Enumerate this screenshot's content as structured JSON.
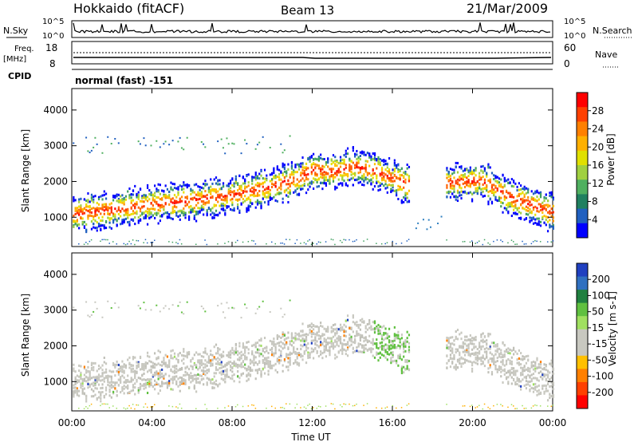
{
  "header": {
    "station": "Hokkaido (fitACF)",
    "beam": "Beam 13",
    "date": "21/Mar/2009"
  },
  "side_labels": {
    "nsky": "N.Sky",
    "nsearch": "N.Search",
    "freq": "Freq.",
    "freq_unit": "[MHz]",
    "nave": "Nave",
    "cpid": "CPID",
    "cpid_value": "normal (fast) -151",
    "nsky_ticks": [
      "10^5",
      "10^0"
    ],
    "nsearch_ticks": [
      "10^5",
      "10^0"
    ],
    "freq_ticks": [
      "18",
      "8"
    ],
    "nave_ticks": [
      "60",
      "0"
    ]
  },
  "chart_data": [
    {
      "type": "heatmap",
      "title": "",
      "xlabel": "Time UT",
      "ylabel": "Slant Range [km]",
      "x_ticks": [
        "00:00",
        "04:00",
        "08:00",
        "12:00",
        "16:00",
        "20:00",
        "00:00"
      ],
      "xlim_hours": [
        0,
        24
      ],
      "y_ticks": [
        1000,
        2000,
        3000,
        4000
      ],
      "ylim": [
        180,
        4600
      ],
      "colorbar": {
        "label": "Power [dB]",
        "ticks": [
          "28",
          "24",
          "20",
          "16",
          "12",
          "8",
          "4"
        ],
        "colors": [
          "#ff0000",
          "#ff4000",
          "#ff8000",
          "#ffb000",
          "#e0e000",
          "#a0d040",
          "#50b060",
          "#208060",
          "#2060c0",
          "#0000ff"
        ]
      },
      "echo_band": [
        {
          "t": 0,
          "range": 1100
        },
        {
          "t": 2,
          "range": 1250
        },
        {
          "t": 4,
          "range": 1400
        },
        {
          "t": 6,
          "range": 1500
        },
        {
          "t": 8,
          "range": 1650
        },
        {
          "t": 10,
          "range": 1900
        },
        {
          "t": 11.2,
          "range": 2100
        },
        {
          "t": 12,
          "range": 2350
        },
        {
          "t": 13,
          "range": 2300
        },
        {
          "t": 14,
          "range": 2450
        },
        {
          "t": 15,
          "range": 2350
        },
        {
          "t": 16,
          "range": 2100
        },
        {
          "t": 16.7,
          "range": 1950
        },
        {
          "t": 20.5,
          "range": 2050
        },
        {
          "t": 22,
          "range": 1550
        },
        {
          "t": 24,
          "range": 1150
        }
      ]
    },
    {
      "type": "heatmap",
      "title": "",
      "xlabel": "Time UT",
      "ylabel": "Slant Range [km]",
      "x_ticks": [
        "00:00",
        "04:00",
        "08:00",
        "12:00",
        "16:00",
        "20:00",
        "00:00"
      ],
      "xlim_hours": [
        0,
        24
      ],
      "y_ticks": [
        1000,
        2000,
        3000,
        4000
      ],
      "ylim": [
        180,
        4600
      ],
      "colorbar": {
        "label": "Velocity [m s-1]",
        "ticks": [
          "200",
          "100",
          "50",
          "15",
          "-15",
          "-50",
          "-100",
          "-200"
        ],
        "colors": [
          "#2040c0",
          "#3070c0",
          "#208040",
          "#60c040",
          "#a0e060",
          "#c8c8c0",
          "#c8c8c0",
          "#ffc000",
          "#ff8000",
          "#ff4000",
          "#ff0000"
        ]
      }
    }
  ]
}
